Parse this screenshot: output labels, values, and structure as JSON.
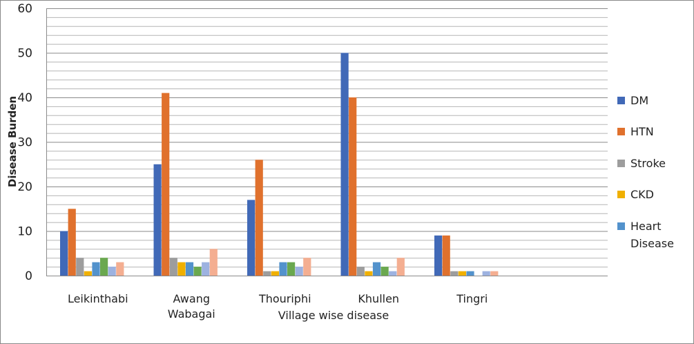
{
  "chart_data": {
    "type": "bar",
    "title": "",
    "xlabel": "Village wise disease",
    "ylabel": "Disease Burden",
    "ylim": [
      0,
      60
    ],
    "yticks": [
      0,
      10,
      20,
      30,
      40,
      50,
      60
    ],
    "grid": true,
    "legend_position": "right",
    "categories": [
      [
        "Leikinthabi"
      ],
      [
        "Awang",
        "Wabagai"
      ],
      [
        "Thouriphi"
      ],
      [
        "Khullen"
      ],
      [
        "Tingri"
      ]
    ],
    "series": [
      {
        "name": "DM",
        "color": "#4169B7",
        "values": [
          10,
          25,
          17,
          50,
          9
        ]
      },
      {
        "name": "HTN",
        "color": "#E0712D",
        "values": [
          15,
          41,
          26,
          40,
          9
        ]
      },
      {
        "name": "Stroke",
        "color": "#9D9D9D",
        "values": [
          4,
          4,
          1,
          2,
          1
        ]
      },
      {
        "name": "CKD",
        "color": "#F0B000",
        "values": [
          1,
          3,
          1,
          1,
          1
        ]
      },
      {
        "name": [
          "Heart",
          "Disease"
        ],
        "color": "#5392CC",
        "values": [
          3,
          3,
          3,
          3,
          1
        ]
      },
      {
        "name": "",
        "color": "#6AA84F",
        "values": [
          4,
          2,
          3,
          2,
          0
        ]
      },
      {
        "name": "",
        "color": "#9DB2E0",
        "values": [
          2,
          3,
          2,
          1,
          1
        ]
      },
      {
        "name": "",
        "color": "#F4AE91",
        "values": [
          3,
          6,
          4,
          4,
          1
        ]
      }
    ],
    "legend_visible_count": 5
  }
}
